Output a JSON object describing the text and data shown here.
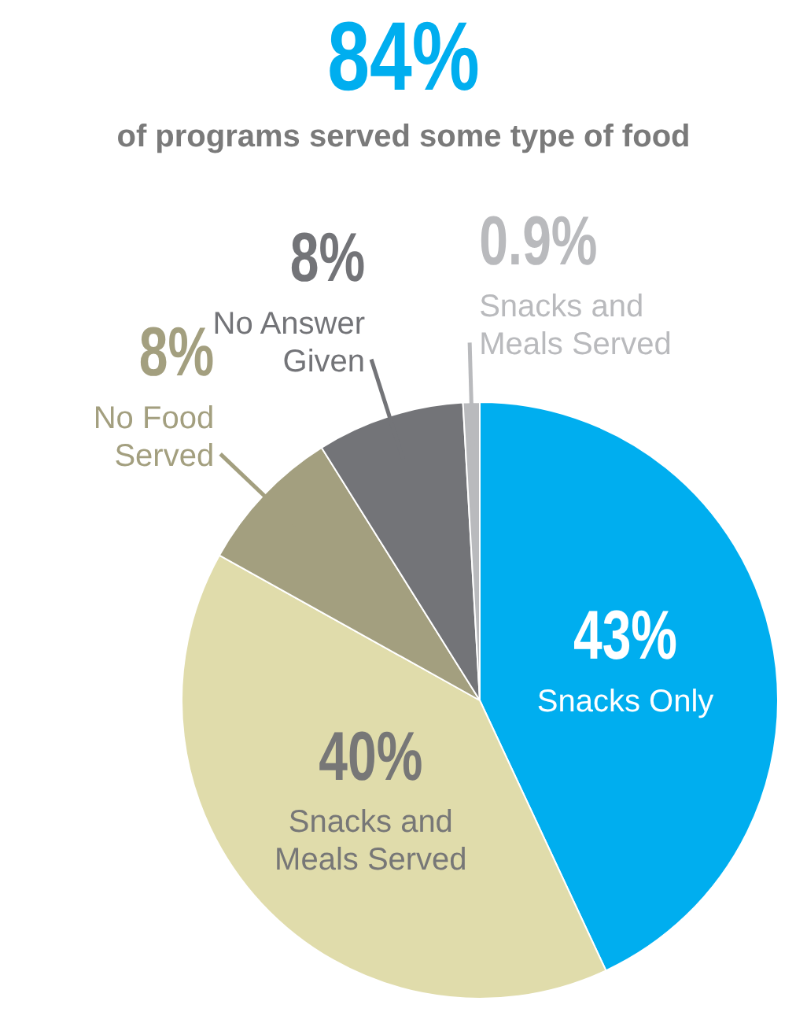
{
  "chart_data": {
    "type": "pie",
    "title": "84%",
    "subtitle": "of programs served some type of food",
    "categories": [
      "Snacks Only",
      "Snacks and Meals Served",
      "No Food Served",
      "No Answer Given",
      "Snacks and Meals Served"
    ],
    "values": [
      43,
      40,
      8,
      8,
      0.9
    ],
    "colors": [
      "#00aeef",
      "#e0dcab",
      "#a39f7f",
      "#737478",
      "#b9babd"
    ],
    "value_labels": [
      "43%",
      "40%",
      "8%",
      "8%",
      "0.9%"
    ],
    "legend": false
  }
}
